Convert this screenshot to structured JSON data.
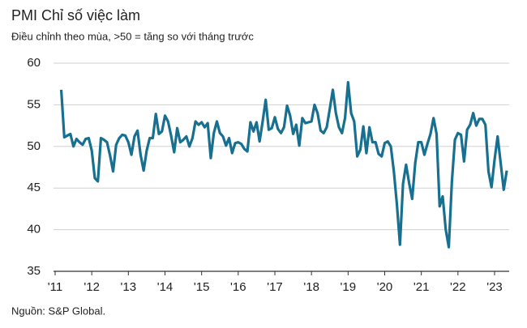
{
  "chart_data": {
    "type": "line",
    "title": "PMI Chỉ số việc làm",
    "subtitle": "Điều chỉnh theo mùa, >50 = tăng so với tháng trước",
    "source": "Nguồn: S&P Global.",
    "categories": [
      "'11",
      null,
      null,
      null,
      null,
      null,
      null,
      null,
      null,
      null,
      null,
      null,
      "'12",
      null,
      null,
      null,
      null,
      null,
      null,
      null,
      null,
      null,
      null,
      null,
      "'13",
      null,
      null,
      null,
      null,
      null,
      null,
      null,
      null,
      null,
      null,
      null,
      "'14",
      null,
      null,
      null,
      null,
      null,
      null,
      null,
      null,
      null,
      null,
      null,
      "'15",
      null,
      null,
      null,
      null,
      null,
      null,
      null,
      null,
      null,
      null,
      null,
      "'16",
      null,
      null,
      null,
      null,
      null,
      null,
      null,
      null,
      null,
      null,
      null,
      "'17",
      null,
      null,
      null,
      null,
      null,
      null,
      null,
      null,
      null,
      null,
      null,
      "'18",
      null,
      null,
      null,
      null,
      null,
      null,
      null,
      null,
      null,
      null,
      null,
      "'19",
      null,
      null,
      null,
      null,
      null,
      null,
      null,
      null,
      null,
      null,
      null,
      "'20",
      null,
      null,
      null,
      null,
      null,
      null,
      null,
      null,
      null,
      null,
      null,
      "'21",
      null,
      null,
      null,
      null,
      null,
      null,
      null,
      null,
      null,
      null,
      null,
      "'22",
      null,
      null,
      null,
      null,
      null,
      null,
      null,
      null,
      null,
      null,
      null,
      "'23",
      null,
      null,
      null,
      null
    ],
    "series": [
      {
        "name": "PMI",
        "color": "#17708f",
        "values": [
          null,
          null,
          56.8,
          51.1,
          51.3,
          51.5,
          50.0,
          50.9,
          50.5,
          50.2,
          50.9,
          51.0,
          49.5,
          46.2,
          45.8,
          51.0,
          50.8,
          50.5,
          48.9,
          47.0,
          50.2,
          51.0,
          51.4,
          51.3,
          50.5,
          49.0,
          51.2,
          51.9,
          49.0,
          47.1,
          49.5,
          51.0,
          51.0,
          53.9,
          51.5,
          51.8,
          53.7,
          53.0,
          51.3,
          49.3,
          52.2,
          50.5,
          50.8,
          51.2,
          50.0,
          51.0,
          53.0,
          52.6,
          52.9,
          52.3,
          52.8,
          48.6,
          51.6,
          53.0,
          51.6,
          51.2,
          50.1,
          51.0,
          49.2,
          50.4,
          50.5,
          50.3,
          49.7,
          49.4,
          52.9,
          51.8,
          52.9,
          50.6,
          53.0,
          55.6,
          52.0,
          52.2,
          53.5,
          52.1,
          51.6,
          52.3,
          54.9,
          53.7,
          51.5,
          52.6,
          50.1,
          53.4,
          52.8,
          52.9,
          53.0,
          55.0,
          54.0,
          51.9,
          51.6,
          52.3,
          54.5,
          56.8,
          54.0,
          52.3,
          51.6,
          53.4,
          57.7,
          54.0,
          53.0,
          48.8,
          49.6,
          52.4,
          49.2,
          52.3,
          50.5,
          50.5,
          49.1,
          48.8,
          50.4,
          50.6,
          50.0,
          47.0,
          43.0,
          38.2,
          45.5,
          47.8,
          45.6,
          43.7,
          48.0,
          50.5,
          50.5,
          49.0,
          50.3,
          51.5,
          53.4,
          51.5,
          42.8,
          44.0,
          40.0,
          37.9,
          45.7,
          50.8,
          51.6,
          51.4,
          48.2,
          52.0,
          52.6,
          54.0,
          52.5,
          53.3,
          53.3,
          52.6,
          47.0,
          45.1,
          48.4,
          51.2,
          48.0,
          44.8,
          47.1
        ]
      }
    ],
    "ylim": [
      35,
      60
    ],
    "yticks": [
      35,
      40,
      45,
      50,
      55,
      60
    ],
    "grid": true
  }
}
